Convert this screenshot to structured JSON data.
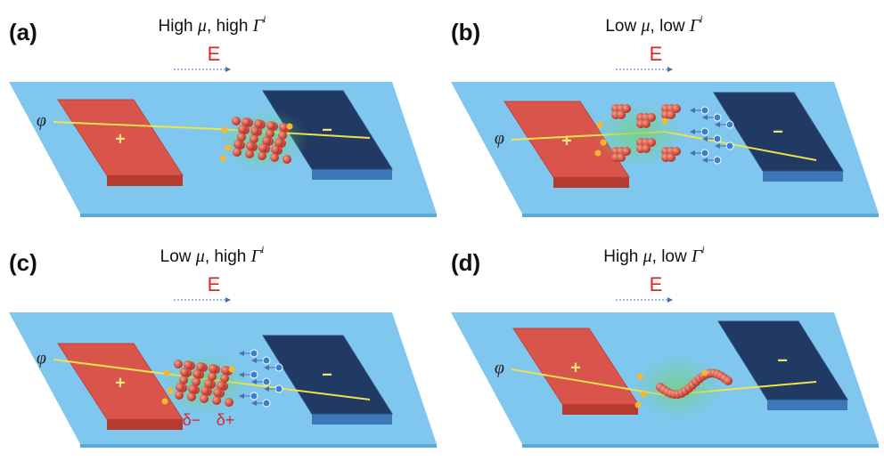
{
  "panels": [
    {
      "label": "(a)",
      "title": [
        "High ",
        "μ",
        ", high ",
        "Γ",
        "i"
      ],
      "field": "E",
      "potential": "φ",
      "anode": "+",
      "cathode": "−"
    },
    {
      "label": "(b)",
      "title": [
        "Low ",
        "μ",
        ", low ",
        "Γ",
        "i"
      ],
      "field": "E",
      "potential": "φ",
      "anode": "+",
      "cathode": "−"
    },
    {
      "label": "(c)",
      "title": [
        "Low ",
        "μ",
        ", high ",
        "Γ",
        "i"
      ],
      "field": "E",
      "potential": "φ",
      "anode": "+",
      "cathode": "−",
      "dipole": [
        "δ−",
        "δ+"
      ]
    },
    {
      "label": "(d)",
      "title": [
        "High ",
        "μ",
        ", low ",
        "Γ",
        "i"
      ],
      "field": "E",
      "potential": "φ",
      "anode": "+",
      "cathode": "−"
    }
  ]
}
